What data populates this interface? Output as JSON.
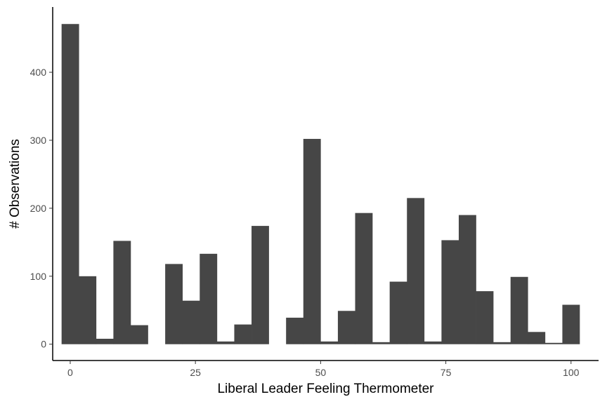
{
  "chart_data": {
    "type": "bar",
    "title": "",
    "xlabel": "Liberal Leader Feeling Thermometer",
    "ylabel": "# Observations",
    "xlim": [
      -3.5,
      105.5
    ],
    "ylim": [
      -24,
      496
    ],
    "x_ticks": [
      0,
      25,
      50,
      75,
      100
    ],
    "y_ticks": [
      0,
      100,
      200,
      300,
      400
    ],
    "bin_width": 3.448,
    "bin_start": -1.724,
    "values": [
      471,
      100,
      8,
      152,
      28,
      0,
      118,
      64,
      133,
      4,
      29,
      174,
      0,
      39,
      302,
      4,
      49,
      193,
      3,
      92,
      215,
      4,
      153,
      190,
      78,
      3,
      99,
      18,
      2,
      58
    ],
    "bar_color": "#464646",
    "grid": false,
    "legend": "none"
  }
}
